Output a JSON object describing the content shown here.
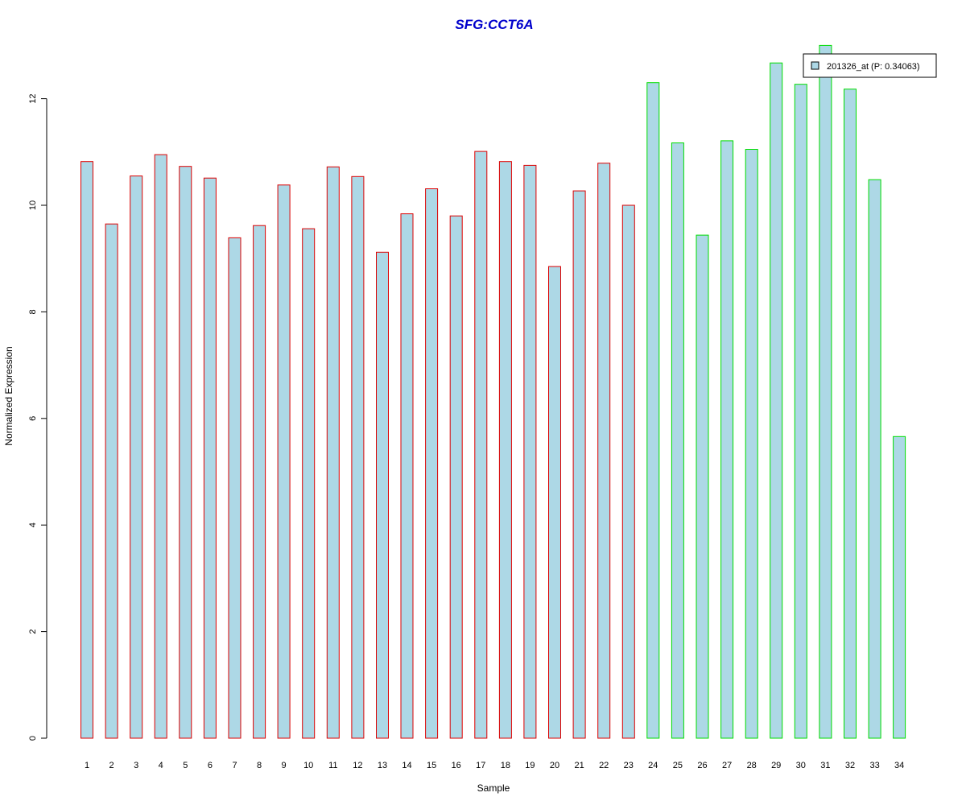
{
  "chart_data": {
    "type": "bar",
    "title": "SFG:CCT6A",
    "xlabel": "Sample",
    "ylabel": "Normalized Expression",
    "categories": [
      "1",
      "2",
      "3",
      "4",
      "5",
      "6",
      "7",
      "8",
      "9",
      "10",
      "11",
      "12",
      "13",
      "14",
      "15",
      "16",
      "17",
      "18",
      "19",
      "20",
      "21",
      "22",
      "23",
      "24",
      "25",
      "26",
      "27",
      "28",
      "29",
      "30",
      "31",
      "32",
      "33",
      "34"
    ],
    "values": [
      10.82,
      9.65,
      10.55,
      10.95,
      10.73,
      10.51,
      9.39,
      9.62,
      10.38,
      9.56,
      10.72,
      10.54,
      9.12,
      9.84,
      10.31,
      9.8,
      11.01,
      10.82,
      10.75,
      8.85,
      10.27,
      10.79,
      10.0,
      12.3,
      11.17,
      9.44,
      11.21,
      11.05,
      12.67,
      12.27,
      13.0,
      12.18,
      10.48,
      5.66
    ],
    "group_boundary_after_index": 22,
    "yticks": [
      "0",
      "2",
      "4",
      "6",
      "8",
      "10",
      "12"
    ],
    "ylim": [
      0,
      13
    ],
    "legend": {
      "label": "201326_at (P: 0.34063)",
      "position": "top-right"
    },
    "colors": {
      "bar_fill": "#add8e6",
      "group1_border": "#dd0000",
      "group2_border": "#00dd00",
      "title": "#0000cc"
    },
    "grid": false
  }
}
